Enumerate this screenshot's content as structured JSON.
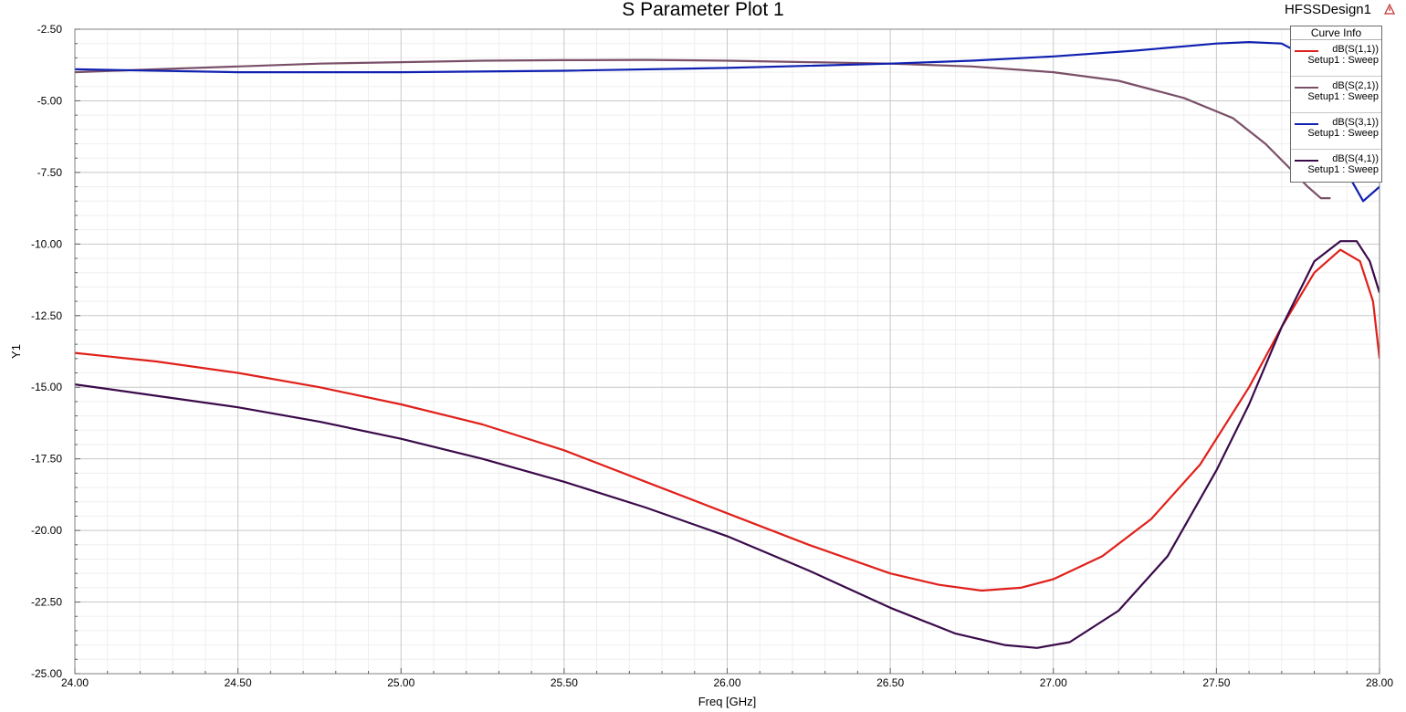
{
  "header": {
    "title": "S Parameter Plot 1",
    "design_name": "HFSSDesign1"
  },
  "legend": {
    "header": "Curve Info",
    "items": [
      {
        "name": "dB(S(1,1))",
        "sub": "Setup1 : Sweep",
        "color": "#e0201a"
      },
      {
        "name": "dB(S(2,1))",
        "sub": "Setup1 : Sweep",
        "color": "#7a5068"
      },
      {
        "name": "dB(S(3,1))",
        "sub": "Setup1 : Sweep",
        "color": "#1020b0"
      },
      {
        "name": "dB(S(4,1))",
        "sub": "Setup1 : Sweep",
        "color": "#3a0a4a"
      }
    ]
  },
  "chart_data": {
    "type": "line",
    "title": "S Parameter Plot 1",
    "xlabel": "Freq [GHz]",
    "ylabel": "Y1",
    "xlim": [
      24.0,
      28.0
    ],
    "ylim": [
      -25.0,
      -2.5
    ],
    "x_ticks": [
      "24.00",
      "24.50",
      "25.00",
      "25.50",
      "26.00",
      "26.50",
      "27.00",
      "27.50",
      "28.00"
    ],
    "y_ticks": [
      "-2.50",
      "-5.00",
      "-7.50",
      "-10.00",
      "-12.50",
      "-15.00",
      "-17.50",
      "-20.00",
      "-22.50",
      "-25.00"
    ],
    "grid": true,
    "legend_position": "top-right",
    "series": [
      {
        "name": "dB(S(1,1))",
        "color": "#e0201a",
        "x": [
          24.0,
          24.25,
          24.5,
          24.75,
          25.0,
          25.25,
          25.5,
          25.75,
          26.0,
          26.25,
          26.5,
          26.65,
          26.78,
          26.9,
          27.0,
          27.15,
          27.3,
          27.45,
          27.6,
          27.7,
          27.8,
          27.88,
          27.94,
          27.98,
          28.0
        ],
        "y": [
          -13.8,
          -14.1,
          -14.5,
          -15.0,
          -15.6,
          -16.3,
          -17.2,
          -18.3,
          -19.4,
          -20.5,
          -21.5,
          -21.9,
          -22.1,
          -22.0,
          -21.7,
          -20.9,
          -19.6,
          -17.7,
          -15.0,
          -12.9,
          -11.0,
          -10.2,
          -10.6,
          -12.0,
          -14.0
        ]
      },
      {
        "name": "dB(S(2,1))",
        "color": "#7a5068",
        "x": [
          24.0,
          24.25,
          24.5,
          24.75,
          25.0,
          25.25,
          25.5,
          25.75,
          26.0,
          26.25,
          26.5,
          26.75,
          27.0,
          27.2,
          27.4,
          27.55,
          27.65,
          27.72,
          27.78,
          27.82,
          27.85
        ],
        "y": [
          -4.0,
          -3.9,
          -3.8,
          -3.7,
          -3.65,
          -3.6,
          -3.58,
          -3.57,
          -3.6,
          -3.65,
          -3.7,
          -3.8,
          -4.0,
          -4.3,
          -4.9,
          -5.6,
          -6.5,
          -7.3,
          -8.0,
          -8.4,
          -8.4
        ]
      },
      {
        "name": "dB(S(3,1))",
        "color": "#1020b0",
        "x": [
          24.0,
          24.5,
          25.0,
          25.5,
          26.0,
          26.5,
          26.75,
          27.0,
          27.25,
          27.5,
          27.6,
          27.7,
          27.75,
          27.8,
          27.9,
          27.95,
          28.0
        ],
        "y": [
          -3.9,
          -4.0,
          -4.0,
          -3.95,
          -3.85,
          -3.7,
          -3.6,
          -3.45,
          -3.25,
          -3.0,
          -2.95,
          -3.0,
          -3.3,
          -4.0,
          -7.5,
          -8.5,
          -8.0
        ]
      },
      {
        "name": "dB(S(4,1))",
        "color": "#3a0a4a",
        "x": [
          24.0,
          24.25,
          24.5,
          24.75,
          25.0,
          25.25,
          25.5,
          25.75,
          26.0,
          26.25,
          26.5,
          26.7,
          26.85,
          26.95,
          27.05,
          27.2,
          27.35,
          27.5,
          27.6,
          27.7,
          27.8,
          27.88,
          27.93,
          27.97,
          28.0
        ],
        "y": [
          -14.9,
          -15.3,
          -15.7,
          -16.2,
          -16.8,
          -17.5,
          -18.3,
          -19.2,
          -20.2,
          -21.4,
          -22.7,
          -23.6,
          -24.0,
          -24.1,
          -23.9,
          -22.8,
          -20.9,
          -17.9,
          -15.6,
          -12.9,
          -10.6,
          -9.9,
          -9.9,
          -10.6,
          -11.7
        ]
      }
    ]
  }
}
